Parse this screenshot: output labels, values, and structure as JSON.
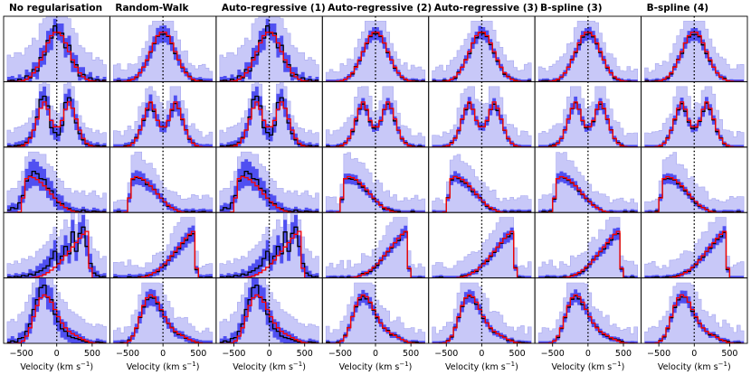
{
  "chart_data": {
    "type": "step-histogram-grid",
    "column_titles": [
      "No regularisation",
      "Random-Walk",
      "Auto-regressive (1)",
      "Auto-regressive (2)",
      "Auto-regressive (3)",
      "B-spline (3)",
      "B-spline (4)"
    ],
    "xlabel_text": "Velocity (km s",
    "xlabel_exponent": "−1",
    "xlabel_close": ")",
    "xlim": [
      -750,
      750
    ],
    "xticks": [
      -500,
      0,
      500
    ],
    "xtick_labels": [
      "−500",
      "0",
      "500"
    ],
    "ylim": [
      0,
      1.35
    ],
    "reference_line_x": 0,
    "bin_edges": [
      -700,
      -650,
      -600,
      -550,
      -500,
      -450,
      -400,
      -350,
      -300,
      -250,
      -200,
      -150,
      -100,
      -50,
      0,
      50,
      100,
      150,
      200,
      250,
      300,
      350,
      400,
      450,
      500,
      550,
      600,
      650,
      700
    ],
    "colors": {
      "truth": "#ff0000",
      "median": "#000000",
      "inner_band": "#4a4af0",
      "outer_band": "#c8c8f8",
      "outer_line": "#a8a8f0"
    },
    "rows": [
      {
        "truth": [
          0,
          0,
          0,
          0.01,
          0.02,
          0.05,
          0.1,
          0.18,
          0.3,
          0.45,
          0.62,
          0.8,
          0.95,
          1.02,
          1.02,
          0.95,
          0.8,
          0.62,
          0.45,
          0.3,
          0.18,
          0.1,
          0.05,
          0.02,
          0.01,
          0,
          0,
          0
        ],
        "unreg_median": [
          0.02,
          0.03,
          0.01,
          0.05,
          0.02,
          0.12,
          0.08,
          0.25,
          0.22,
          0.5,
          0.55,
          0.85,
          0.9,
          1.15,
          1.0,
          1.0,
          0.7,
          0.75,
          0.4,
          0.35,
          0.12,
          0.15,
          0.05,
          0.08,
          0.02,
          0.04,
          0.01,
          0.03
        ],
        "unreg_lo": [
          0,
          0,
          0,
          0,
          0,
          0.02,
          0,
          0.1,
          0.05,
          0.3,
          0.35,
          0.6,
          0.65,
          0.95,
          0.85,
          0.8,
          0.5,
          0.55,
          0.2,
          0.2,
          0.02,
          0.05,
          0,
          0,
          0,
          0,
          0,
          0
        ],
        "unreg_hi": [
          0.1,
          0.12,
          0.08,
          0.15,
          0.1,
          0.25,
          0.2,
          0.4,
          0.4,
          0.7,
          0.75,
          1.05,
          1.1,
          1.3,
          1.2,
          1.2,
          0.9,
          0.95,
          0.6,
          0.55,
          0.3,
          0.3,
          0.15,
          0.2,
          0.08,
          0.12,
          0.06,
          0.1
        ],
        "unreg_outer_hi": [
          0.55,
          0.5,
          0.6,
          0.6,
          0.55,
          0.7,
          0.75,
          0.9,
          0.85,
          1.2,
          1.3,
          1.35,
          1.35,
          1.35,
          1.35,
          1.35,
          1.35,
          1.3,
          1.1,
          1.0,
          0.75,
          0.7,
          0.6,
          0.6,
          0.45,
          0.5,
          0.45,
          0.35
        ]
      },
      {
        "truth": [
          0,
          0,
          0,
          0.01,
          0.03,
          0.08,
          0.18,
          0.35,
          0.58,
          0.8,
          0.93,
          0.78,
          0.55,
          0.42,
          0.42,
          0.55,
          0.78,
          0.93,
          0.8,
          0.58,
          0.35,
          0.18,
          0.08,
          0.03,
          0.01,
          0,
          0,
          0
        ],
        "unreg_median": [
          0.02,
          0.01,
          0.03,
          0.04,
          0.05,
          0.1,
          0.2,
          0.35,
          0.62,
          0.98,
          1.05,
          0.85,
          0.4,
          0.3,
          0.25,
          0.45,
          0.92,
          1.02,
          0.8,
          0.5,
          0.28,
          0.15,
          0.06,
          0.04,
          0.02,
          0.03,
          0.01,
          0.02
        ],
        "unreg_lo": [
          0,
          0,
          0,
          0,
          0,
          0.02,
          0.08,
          0.2,
          0.45,
          0.8,
          0.85,
          0.65,
          0.25,
          0.15,
          0.12,
          0.3,
          0.75,
          0.85,
          0.62,
          0.35,
          0.15,
          0.05,
          0,
          0,
          0,
          0,
          0,
          0
        ],
        "unreg_hi": [
          0.08,
          0.06,
          0.1,
          0.12,
          0.14,
          0.2,
          0.32,
          0.5,
          0.8,
          1.15,
          1.25,
          1.05,
          0.58,
          0.48,
          0.4,
          0.62,
          1.1,
          1.2,
          1.0,
          0.68,
          0.42,
          0.28,
          0.15,
          0.12,
          0.08,
          0.1,
          0.06,
          0.08
        ],
        "unreg_outer_hi": [
          0.35,
          0.3,
          0.4,
          0.42,
          0.45,
          0.5,
          0.6,
          0.75,
          1.0,
          1.3,
          1.35,
          1.3,
          0.85,
          0.75,
          0.7,
          0.9,
          1.3,
          1.35,
          1.25,
          0.95,
          0.65,
          0.5,
          0.4,
          0.38,
          0.3,
          0.35,
          0.28,
          0.3
        ]
      },
      {
        "truth": [
          0,
          0,
          0,
          0.01,
          0.3,
          0.7,
          0.74,
          0.72,
          0.68,
          0.62,
          0.55,
          0.47,
          0.38,
          0.3,
          0.22,
          0.15,
          0.1,
          0.06,
          0.03,
          0.01,
          0,
          0,
          0,
          0,
          0,
          0,
          0,
          0
        ],
        "unreg_median": [
          0.05,
          0.1,
          0.08,
          0.2,
          0.35,
          0.65,
          0.75,
          0.85,
          0.8,
          0.7,
          0.68,
          0.5,
          0.45,
          0.3,
          0.2,
          0.18,
          0.1,
          0.08,
          0.04,
          0.03,
          0.02,
          0.05,
          0.02,
          0.01,
          0.03,
          0.02,
          0.01,
          0.02
        ],
        "unreg_lo": [
          0,
          0,
          0,
          0.05,
          0.2,
          0.45,
          0.5,
          0.55,
          0.55,
          0.45,
          0.45,
          0.3,
          0.25,
          0.12,
          0.05,
          0.05,
          0,
          0,
          0,
          0,
          0,
          0,
          0,
          0,
          0,
          0,
          0,
          0
        ],
        "unreg_hi": [
          0.15,
          0.2,
          0.18,
          0.35,
          0.55,
          0.9,
          1.05,
          1.1,
          1.05,
          0.95,
          0.9,
          0.72,
          0.65,
          0.5,
          0.38,
          0.35,
          0.22,
          0.2,
          0.12,
          0.1,
          0.08,
          0.12,
          0.08,
          0.06,
          0.1,
          0.08,
          0.05,
          0.08
        ],
        "unreg_outer_hi": [
          0.45,
          0.5,
          0.5,
          0.65,
          0.85,
          1.15,
          1.25,
          1.25,
          1.25,
          1.2,
          1.2,
          1.0,
          0.95,
          0.85,
          0.7,
          0.65,
          0.5,
          0.5,
          0.4,
          0.45,
          0.4,
          0.45,
          0.35,
          0.4,
          0.45,
          0.35,
          0.3,
          0.4
        ]
      },
      {
        "truth": [
          0,
          0,
          0,
          0,
          0,
          0,
          0,
          0.01,
          0.02,
          0.04,
          0.07,
          0.11,
          0.16,
          0.22,
          0.29,
          0.37,
          0.46,
          0.55,
          0.64,
          0.73,
          0.82,
          0.9,
          0.96,
          0.2,
          0,
          0,
          0,
          0
        ],
        "unreg_median": [
          0.02,
          0.01,
          0.03,
          0.02,
          0.05,
          0.04,
          0.08,
          0.06,
          0.12,
          0.15,
          0.2,
          0.25,
          0.4,
          0.55,
          0.3,
          0.45,
          0.65,
          0.5,
          0.95,
          0.55,
          0.92,
          1.05,
          0.65,
          0.3,
          0.1,
          0.05,
          0.02,
          0.03
        ],
        "unreg_lo": [
          0,
          0,
          0,
          0,
          0,
          0,
          0,
          0,
          0,
          0.02,
          0.05,
          0.1,
          0.22,
          0.35,
          0.15,
          0.28,
          0.45,
          0.3,
          0.72,
          0.35,
          0.7,
          0.82,
          0.45,
          0.12,
          0,
          0,
          0,
          0
        ],
        "unreg_hi": [
          0.08,
          0.06,
          0.1,
          0.08,
          0.12,
          0.1,
          0.18,
          0.15,
          0.25,
          0.3,
          0.38,
          0.45,
          0.6,
          0.78,
          0.52,
          0.68,
          0.88,
          0.72,
          1.2,
          0.78,
          1.15,
          1.3,
          0.88,
          0.5,
          0.25,
          0.15,
          0.08,
          0.1
        ],
        "unreg_outer_hi": [
          0.3,
          0.28,
          0.35,
          0.3,
          0.4,
          0.38,
          0.45,
          0.42,
          0.55,
          0.6,
          0.68,
          0.75,
          0.9,
          1.05,
          0.85,
          1.0,
          1.2,
          1.05,
          1.35,
          1.1,
          1.35,
          1.35,
          1.2,
          0.85,
          0.6,
          0.55,
          0.4,
          0.45
        ]
      },
      {
        "truth": [
          0,
          0,
          0,
          0.01,
          0.05,
          0.15,
          0.32,
          0.55,
          0.78,
          0.94,
          1.0,
          0.96,
          0.85,
          0.7,
          0.55,
          0.42,
          0.32,
          0.25,
          0.2,
          0.16,
          0.12,
          0.08,
          0.05,
          0.02,
          0.01,
          0,
          0,
          0
        ],
        "unreg_median": [
          0.02,
          0.05,
          0.03,
          0.1,
          0.12,
          0.25,
          0.4,
          0.7,
          0.9,
          1.15,
          1.2,
          0.95,
          0.9,
          0.6,
          0.45,
          0.3,
          0.25,
          0.15,
          0.12,
          0.1,
          0.08,
          0.05,
          0.03,
          0.02,
          0.01,
          0.03,
          0.02,
          0.01
        ],
        "unreg_lo": [
          0,
          0,
          0,
          0,
          0,
          0.08,
          0.2,
          0.45,
          0.65,
          0.9,
          0.95,
          0.7,
          0.65,
          0.38,
          0.25,
          0.12,
          0.08,
          0.02,
          0,
          0,
          0,
          0,
          0,
          0,
          0,
          0,
          0,
          0
        ],
        "unreg_hi": [
          0.1,
          0.15,
          0.1,
          0.22,
          0.25,
          0.42,
          0.6,
          0.95,
          1.15,
          1.35,
          1.35,
          1.2,
          1.15,
          0.85,
          0.68,
          0.5,
          0.45,
          0.32,
          0.28,
          0.25,
          0.2,
          0.15,
          0.1,
          0.08,
          0.06,
          0.1,
          0.08,
          0.06
        ],
        "unreg_outer_hi": [
          0.45,
          0.5,
          0.45,
          0.6,
          0.65,
          0.85,
          1.0,
          1.25,
          1.35,
          1.35,
          1.35,
          1.35,
          1.35,
          1.2,
          1.05,
          0.9,
          0.85,
          0.7,
          0.65,
          0.6,
          0.55,
          0.5,
          0.42,
          0.4,
          0.35,
          0.4,
          0.38,
          0.35
        ]
      }
    ]
  }
}
